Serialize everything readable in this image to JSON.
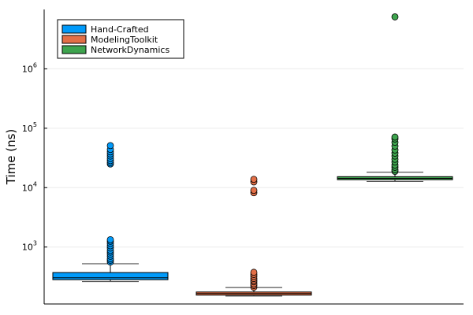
{
  "chart_data": {
    "type": "box",
    "ylabel": "Time (ns)",
    "yscale": "log10",
    "ylim": [
      110,
      10000000
    ],
    "yticks": [
      {
        "base": "10",
        "exp": "3",
        "value": 1000
      },
      {
        "base": "10",
        "exp": "4",
        "value": 10000
      },
      {
        "base": "10",
        "exp": "5",
        "value": 100000
      },
      {
        "base": "10",
        "exp": "6",
        "value": 1000000
      }
    ],
    "grid": true,
    "legend_position": "top-left",
    "series": [
      {
        "name": "Hand-Crafted",
        "color": "#009AFA",
        "min": 262,
        "q1": 282,
        "median": 303,
        "q3": 372,
        "max": 523,
        "outliers": [
          560,
          600,
          640,
          700,
          760,
          820,
          880,
          960,
          1050,
          1150,
          1250,
          1330,
          25000,
          26500,
          28500,
          31000,
          34000,
          37000,
          40000,
          44000,
          51000
        ]
      },
      {
        "name": "ModelingToolkit",
        "color": "#E36F47",
        "min": 150,
        "q1": 155,
        "median": 165,
        "q3": 175,
        "max": 208,
        "outliers": [
          210,
          225,
          240,
          260,
          275,
          295,
          320,
          345,
          375,
          8200,
          9000,
          12500,
          13800
        ]
      },
      {
        "name": "NetworkDynamics",
        "color": "#3EA44E",
        "min": 12700,
        "q1": 13600,
        "median": 14300,
        "q3": 15300,
        "max": 18200,
        "outliers": [
          18800,
          20000,
          22000,
          24000,
          27000,
          30000,
          34000,
          38000,
          43000,
          50000,
          58000,
          66000,
          71000,
          7500000
        ]
      }
    ]
  }
}
